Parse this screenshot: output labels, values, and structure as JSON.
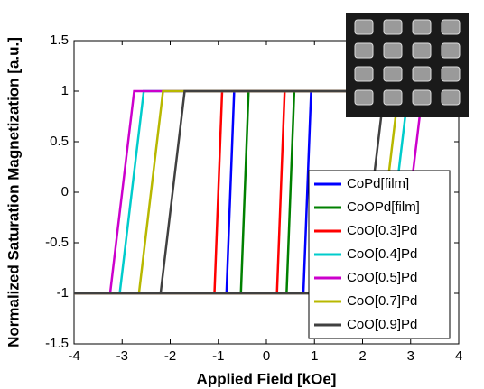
{
  "chart_data": {
    "type": "line",
    "xlabel": "Applied Field [kOe]",
    "ylabel": "Normalized Saturation Magnetization [a.u.]",
    "xlim": [
      -4,
      4
    ],
    "xticks": [
      -4,
      -3,
      -2,
      -1,
      0,
      1,
      2,
      3,
      4
    ],
    "ylim": [
      -1.5,
      1.5
    ],
    "yticks": [
      -1.5,
      -1,
      -0.5,
      0,
      0.5,
      1,
      1.5
    ],
    "legend": "lower right",
    "series": [
      {
        "name": "CoPd[film]",
        "color": "#0000ff",
        "x": [
          -4,
          0.77,
          0.93,
          4,
          -0.67,
          -0.83,
          -4
        ],
        "values": [
          -1,
          -1,
          1,
          1,
          1,
          -1,
          -1
        ]
      },
      {
        "name": "CoOPd[film]",
        "color": "#008000",
        "x": [
          -4,
          0.42,
          0.58,
          4,
          -0.37,
          -0.53,
          -4
        ],
        "values": [
          -1,
          -1,
          1,
          1,
          1,
          -1,
          -1
        ]
      },
      {
        "name": "CoO[0.3]Pd",
        "color": "#ff0000",
        "x": [
          -4,
          0.22,
          0.38,
          4,
          -0.92,
          -1.08,
          -4
        ],
        "values": [
          -1,
          -1,
          1,
          1,
          1,
          -1,
          -1
        ]
      },
      {
        "name": "CoO[0.4]Pd",
        "color": "#00cccc",
        "x": [
          -4,
          2.45,
          2.95,
          4,
          -2.55,
          -3.05,
          -4
        ],
        "values": [
          -1,
          -1,
          1,
          1,
          1,
          -1,
          -1
        ]
      },
      {
        "name": "CoO[0.5]Pd",
        "color": "#cc00cc",
        "x": [
          -4,
          2.75,
          3.25,
          4,
          -2.75,
          -3.25,
          -4
        ],
        "values": [
          -1,
          -1,
          1,
          1,
          1,
          -1,
          -1
        ]
      },
      {
        "name": "CoO[0.7]Pd",
        "color": "#b8b800",
        "x": [
          -4,
          2.25,
          2.75,
          4,
          -2.15,
          -2.65,
          -4
        ],
        "values": [
          -1,
          -1,
          1,
          1,
          1,
          -1,
          -1
        ]
      },
      {
        "name": "CoO[0.9]Pd",
        "color": "#404040",
        "x": [
          -4,
          1.95,
          2.45,
          4,
          -1.7,
          -2.2,
          -4
        ],
        "values": [
          -1,
          -1,
          1,
          1,
          1,
          -1,
          -1
        ]
      }
    ]
  }
}
